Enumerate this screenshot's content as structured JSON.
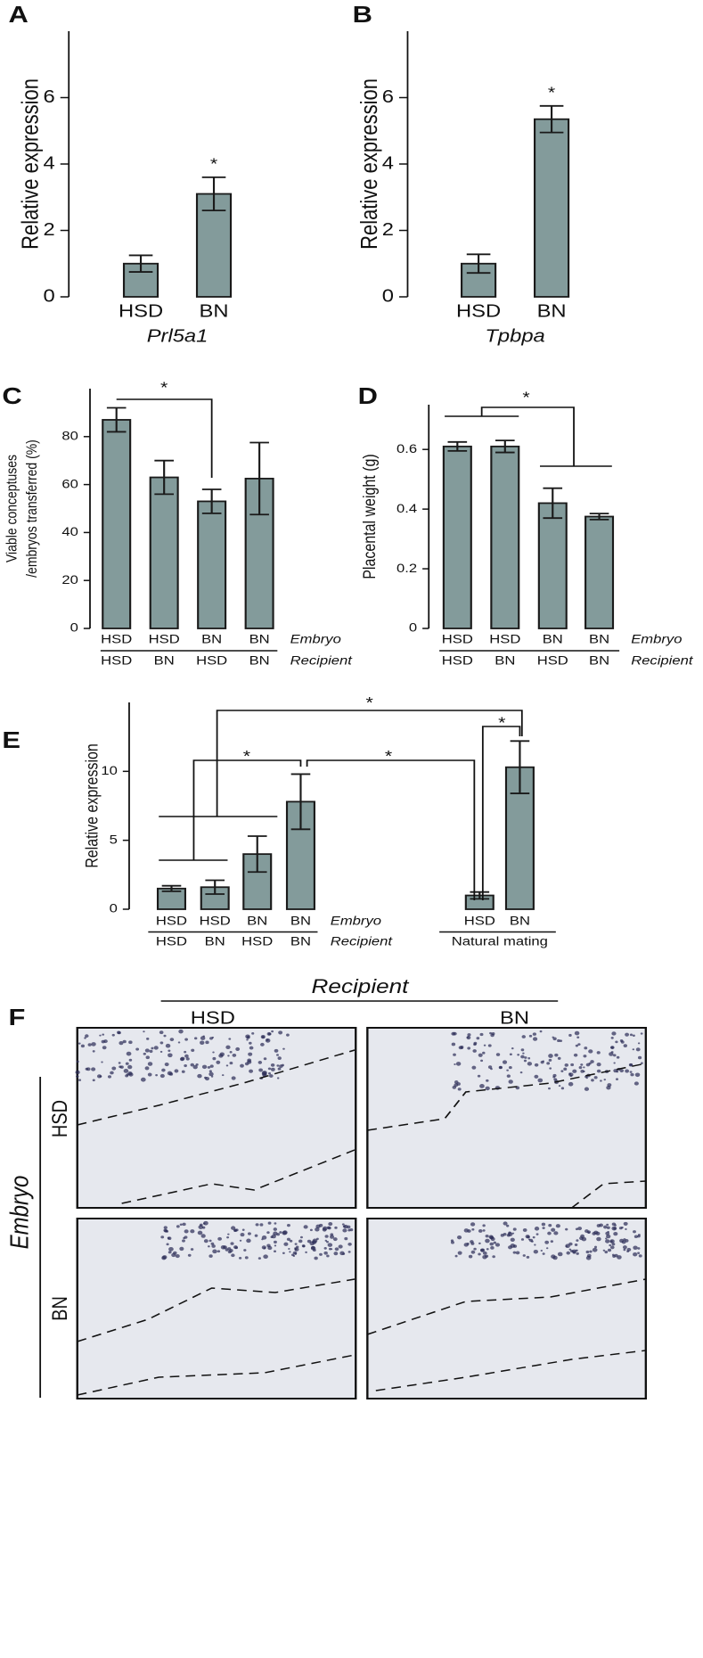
{
  "chart_data": [
    {
      "panel": "A",
      "type": "bar",
      "ylabel": "Relative expression",
      "xlabel": "Prl5a1",
      "categories": [
        "HSD",
        "BN"
      ],
      "values": [
        1.0,
        3.1
      ],
      "errors": [
        0.25,
        0.5
      ],
      "color": "#839b9b",
      "ylim": [
        0,
        8
      ],
      "yticks": [
        0,
        2,
        4,
        6
      ],
      "annotations": [
        "*"
      ]
    },
    {
      "panel": "B",
      "type": "bar",
      "ylabel": "Relative expression",
      "xlabel": "Tpbpa",
      "categories": [
        "HSD",
        "BN"
      ],
      "values": [
        1.0,
        5.35
      ],
      "errors": [
        0.28,
        0.4
      ],
      "color": "#839b9b",
      "ylim": [
        0,
        8
      ],
      "yticks": [
        0,
        2,
        4,
        6
      ],
      "annotations": [
        "*"
      ]
    },
    {
      "panel": "C",
      "type": "bar",
      "ylabel": [
        "Viable conceptuses",
        "/embryos transferred (%)"
      ],
      "categories": [
        "HSD",
        "HSD",
        "BN",
        "BN"
      ],
      "categories_2": [
        "HSD",
        "BN",
        "HSD",
        "BN"
      ],
      "row_labels": [
        "Embryo",
        "Recipient"
      ],
      "values": [
        87,
        63,
        53,
        62.5
      ],
      "errors": [
        5,
        7,
        5,
        15
      ],
      "color": "#839b9b",
      "ylim": [
        0,
        100
      ],
      "yticks": [
        0,
        20,
        40,
        60,
        80
      ],
      "annotations": [
        "*"
      ]
    },
    {
      "panel": "D",
      "type": "bar",
      "ylabel": "Placental weight (g)",
      "categories": [
        "HSD",
        "HSD",
        "BN",
        "BN"
      ],
      "categories_2": [
        "HSD",
        "BN",
        "HSD",
        "BN"
      ],
      "row_labels": [
        "Embryo",
        "Recipient"
      ],
      "values": [
        0.61,
        0.61,
        0.42,
        0.375
      ],
      "errors": [
        0.015,
        0.02,
        0.05,
        0.01
      ],
      "color": "#839b9b",
      "ylim": [
        0,
        0.75
      ],
      "yticks": [
        0,
        0.2,
        0.4,
        0.6
      ],
      "annotations": [
        "*"
      ]
    },
    {
      "panel": "E",
      "type": "bar",
      "ylabel": "Relative expression",
      "categories": [
        "HSD",
        "HSD",
        "BN",
        "BN",
        "HSD",
        "BN"
      ],
      "categories_2": [
        "HSD",
        "BN",
        "HSD",
        "BN"
      ],
      "row_labels": [
        "Embryo",
        "Recipient"
      ],
      "group_label": "Natural mating",
      "values": [
        1.5,
        1.6,
        4.0,
        7.8,
        1.0,
        10.3
      ],
      "errors": [
        0.2,
        0.5,
        1.3,
        2.0,
        0.25,
        1.9
      ],
      "color": "#839b9b",
      "ylim": [
        0,
        15
      ],
      "yticks": [
        0,
        5,
        10
      ],
      "annotations": [
        "*",
        "*",
        "*",
        "*"
      ]
    }
  ],
  "figure_f": {
    "panel": "F",
    "column_title": "Recipient",
    "columns": [
      "HSD",
      "BN"
    ],
    "row_title": "Embryo",
    "rows": [
      "HSD",
      "BN"
    ]
  }
}
